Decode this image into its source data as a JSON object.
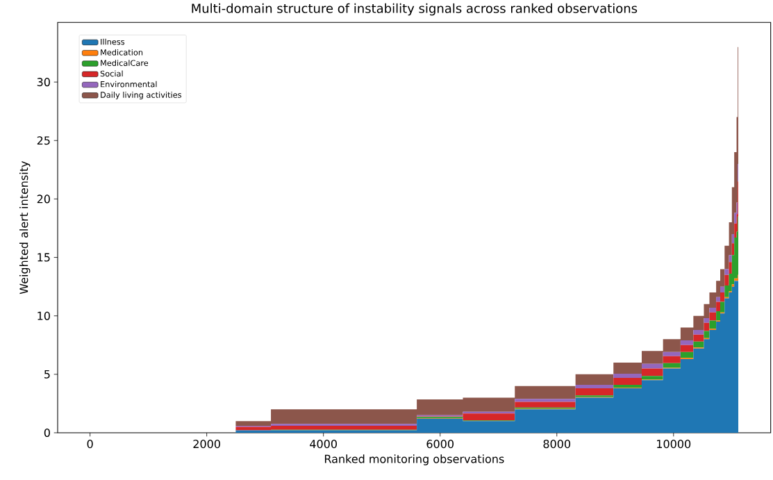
{
  "chart_data": {
    "type": "area",
    "stacked": true,
    "title": "Multi-domain structure of instability signals across ranked observations",
    "xlabel": "Ranked monitoring observations",
    "ylabel": "Weighted alert intensity",
    "x": [
      0,
      2497,
      2497,
      3100,
      3100,
      5600,
      5600,
      6390,
      6390,
      7280,
      7280,
      8320,
      8320,
      8970,
      8970,
      9455,
      9455,
      9820,
      9820,
      10120,
      10120,
      10340,
      10340,
      10520,
      10520,
      10615,
      10615,
      10730,
      10730,
      10800,
      10800,
      10875,
      10875,
      10950,
      10950,
      11000,
      11000,
      11040,
      11040,
      11080,
      11080,
      11100,
      11100,
      11110
    ],
    "series": [
      {
        "name": "Illness",
        "color": "#1f77b4",
        "values": [
          0,
          0,
          0.2,
          0.2,
          0.2,
          0.2,
          1.2,
          1.2,
          1,
          1,
          2,
          2,
          3,
          3,
          3.8,
          3.8,
          4.5,
          4.5,
          5.5,
          5.5,
          6.3,
          6.3,
          7.2,
          7.2,
          8,
          8,
          8.8,
          8.8,
          9.5,
          9.5,
          10.2,
          10.2,
          11.5,
          11.5,
          12,
          12,
          12.5,
          12.5,
          13,
          13,
          13,
          13,
          13,
          13
        ]
      },
      {
        "name": "Medication",
        "color": "#ff7f0e",
        "values": [
          0,
          0,
          0,
          0,
          0,
          0,
          0.05,
          0.05,
          0,
          0,
          0.05,
          0.05,
          0.05,
          0.05,
          0.05,
          0.05,
          0.05,
          0.05,
          0.05,
          0.05,
          0.1,
          0.1,
          0.1,
          0.1,
          0.1,
          0.1,
          0.1,
          0.1,
          0.1,
          0.1,
          0.1,
          0.1,
          0.1,
          0.1,
          0.1,
          0.1,
          0.2,
          0.2,
          0.2,
          0.2,
          0.2,
          0.2,
          0.5,
          0.5
        ]
      },
      {
        "name": "MedicalCare",
        "color": "#2ca02c",
        "values": [
          0,
          0,
          0,
          0,
          0.05,
          0.05,
          0.1,
          0.1,
          0.05,
          0.05,
          0.1,
          0.1,
          0.15,
          0.15,
          0.25,
          0.25,
          0.3,
          0.3,
          0.4,
          0.4,
          0.5,
          0.5,
          0.5,
          0.5,
          0.6,
          0.6,
          0.7,
          0.7,
          0.8,
          0.8,
          0.9,
          0.9,
          1,
          1,
          1.5,
          1.5,
          2.5,
          2.5,
          3.5,
          3.5,
          4,
          4,
          5,
          5
        ]
      },
      {
        "name": "Social",
        "color": "#d62728",
        "values": [
          0,
          0,
          0.3,
          0.3,
          0.35,
          0.35,
          0.05,
          0.05,
          0.6,
          0.6,
          0.5,
          0.5,
          0.6,
          0.6,
          0.6,
          0.6,
          0.65,
          0.65,
          0.6,
          0.6,
          0.6,
          0.6,
          0.6,
          0.6,
          0.7,
          0.7,
          0.7,
          0.7,
          0.8,
          0.8,
          0.8,
          0.8,
          0.9,
          0.9,
          1,
          1,
          1,
          1,
          1.2,
          1.2,
          1.5,
          1.5,
          3,
          3
        ]
      },
      {
        "name": "Environmental",
        "color": "#9467bd",
        "values": [
          0,
          0,
          0.1,
          0.1,
          0.15,
          0.15,
          0.1,
          0.1,
          0.15,
          0.15,
          0.25,
          0.25,
          0.3,
          0.3,
          0.35,
          0.35,
          0.4,
          0.4,
          0.35,
          0.35,
          0.4,
          0.4,
          0.4,
          0.4,
          0.4,
          0.4,
          0.4,
          0.4,
          0.4,
          0.4,
          0.5,
          0.5,
          0.5,
          0.5,
          0.6,
          0.6,
          0.8,
          0.8,
          0.9,
          0.9,
          1,
          1,
          1.5,
          1.5
        ]
      },
      {
        "name": "Daily living activities",
        "color": "#8c564b",
        "values": [
          0,
          0,
          0.4,
          0.4,
          1.25,
          1.25,
          1.35,
          1.35,
          1.2,
          1.2,
          1.1,
          1.1,
          0.9,
          0.9,
          0.95,
          0.95,
          1.1,
          1.1,
          1.1,
          1.1,
          1.1,
          1.1,
          1.2,
          1.2,
          1.2,
          1.2,
          1.3,
          1.3,
          1.4,
          1.4,
          1.5,
          1.5,
          2,
          2,
          2.8,
          2.8,
          4,
          4,
          5.2,
          5.2,
          7.3,
          7.3,
          10,
          10
        ]
      }
    ],
    "xlim": [
      -555,
      11665
    ],
    "ylim": [
      0,
      35.1
    ],
    "xticks": [
      0,
      2000,
      4000,
      6000,
      8000,
      10000
    ],
    "yticks": [
      0,
      5,
      10,
      15,
      20,
      25,
      30
    ],
    "legend": "top left"
  }
}
